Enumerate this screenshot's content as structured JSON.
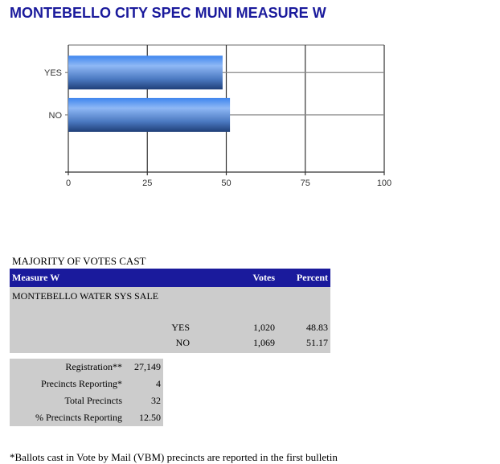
{
  "title": "MONTEBELLO CITY SPEC MUNI MEASURE W",
  "chart_data": {
    "type": "bar",
    "orientation": "horizontal",
    "categories": [
      "YES",
      "NO"
    ],
    "values": [
      48.83,
      51.17
    ],
    "xlim": [
      0,
      100
    ],
    "xticks": [
      "0",
      "25",
      "50",
      "75",
      "100"
    ],
    "grid": true,
    "colors": {
      "bar_light": "#8fb8f5",
      "bar_mid": "#3f7fe0",
      "bar_dark": "#1f3f78"
    }
  },
  "caption": "MAJORITY OF VOTES CAST",
  "results": {
    "headers": [
      "Measure W",
      "Votes",
      "Percent"
    ],
    "measure_name": "MONTEBELLO WATER SYS SALE",
    "rows": [
      {
        "choice": "YES",
        "votes": "1,020",
        "percent": "48.83"
      },
      {
        "choice": "NO",
        "votes": "1,069",
        "percent": "51.17"
      }
    ]
  },
  "stats": [
    {
      "label": "Registration**",
      "value": "27,149"
    },
    {
      "label": "Precincts Reporting*",
      "value": "4"
    },
    {
      "label": "Total Precincts",
      "value": "32"
    },
    {
      "label": "% Precincts Reporting",
      "value": "12.50"
    }
  ],
  "footnote": "*Ballots cast in Vote by Mail (VBM) precincts are reported in the first bulletin"
}
